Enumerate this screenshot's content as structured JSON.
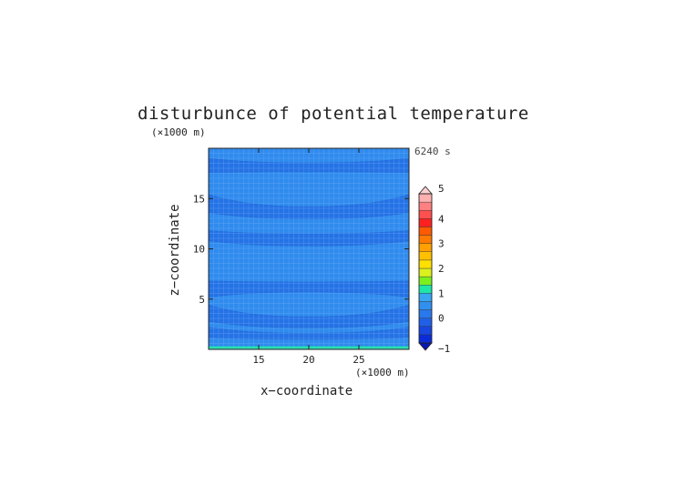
{
  "chart_data": {
    "type": "heatmap",
    "title": "disturbunce of potential temperature",
    "y_unit": "(×1000 m)",
    "x_unit": "(×1000 m)",
    "xlabel": "x−coordinate",
    "ylabel": "z−coordinate",
    "time_label": "6240 s",
    "xlim": [
      10,
      30
    ],
    "ylim": [
      0,
      20
    ],
    "x_ticks": [
      15,
      20,
      25
    ],
    "y_ticks": [
      5,
      10,
      15
    ],
    "colorbar": {
      "range": [
        -1,
        5
      ],
      "tick_values": [
        -1,
        0,
        1,
        2,
        3,
        4,
        5
      ],
      "tick_labels": [
        "−1",
        "0",
        "1",
        "2",
        "3",
        "4",
        "5"
      ],
      "colors": [
        "#0a2cd8",
        "#1846e0",
        "#2060e8",
        "#2878ee",
        "#3090f0",
        "#38a6f0",
        "#1ee6a6",
        "#7cf01e",
        "#dcf01e",
        "#ffe000",
        "#ffc000",
        "#ffa000",
        "#ff7a00",
        "#ff5a00",
        "#ff2020",
        "#ff5050",
        "#ff8080",
        "#ffb0b0"
      ]
    },
    "field": {
      "background_level": -0.1,
      "background_color": "#2f8bee",
      "darker_color": "#2472e6",
      "bottom_color": "#1ee6a6",
      "bottom_band_z": [
        0,
        0.3
      ],
      "dark_bands": [
        {
          "z_center_edge": 18.3,
          "z_center_mid": 18.1,
          "half_width_edge": 0.7,
          "half_width_mid": 0.45
        },
        {
          "z_center_edge": 14.5,
          "z_center_mid": 13.6,
          "half_width_edge": 0.9,
          "half_width_mid": 0.6
        },
        {
          "z_center_edge": 11.3,
          "z_center_mid": 10.9,
          "half_width_edge": 0.5,
          "half_width_mid": 0.6
        },
        {
          "z_center_edge": 6.0,
          "z_center_mid": 6.2,
          "half_width_edge": 0.8,
          "half_width_mid": 0.5
        },
        {
          "z_center_edge": 3.6,
          "z_center_mid": 2.7,
          "half_width_edge": 0.8,
          "half_width_mid": 0.55
        },
        {
          "z_center_edge": 1.7,
          "z_center_mid": 1.3,
          "half_width_edge": 0.5,
          "half_width_mid": 0.3
        }
      ]
    }
  }
}
